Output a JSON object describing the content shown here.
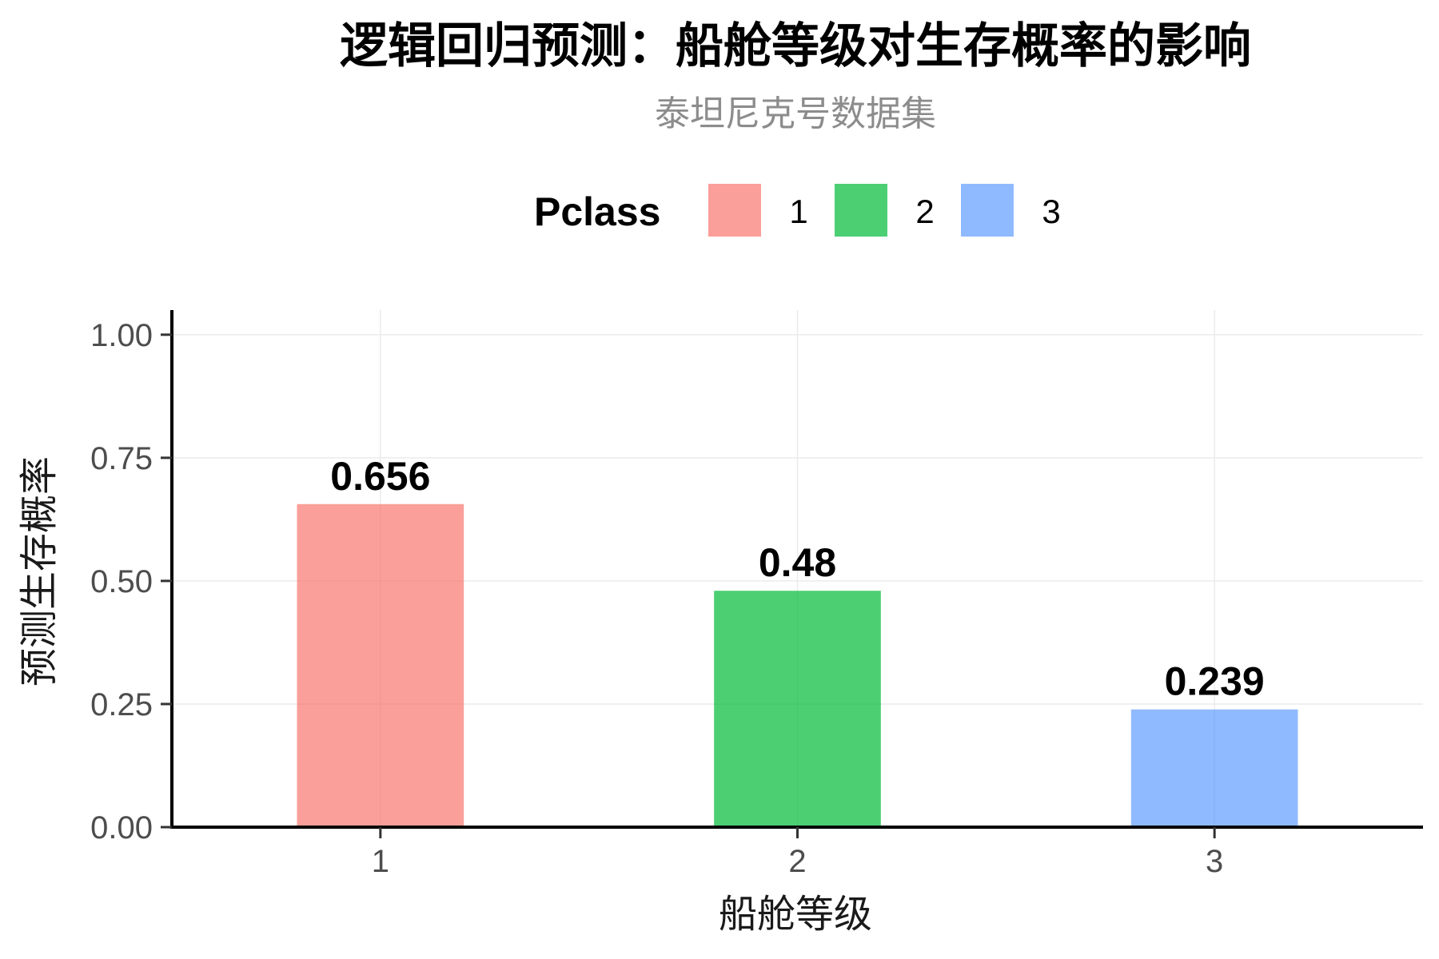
{
  "chart_data": {
    "type": "bar",
    "title": "逻辑回归预测：船舱等级对生存概率的影响",
    "subtitle": "泰坦尼克号数据集",
    "xlabel": "船舱等级",
    "ylabel": "预测生存概率",
    "categories": [
      "1",
      "2",
      "3"
    ],
    "values": [
      0.656,
      0.48,
      0.239
    ],
    "data_labels": [
      "0.656",
      "0.48",
      "0.239"
    ],
    "ylim": [
      0,
      1
    ],
    "y_ticks": [
      0,
      0.25,
      0.5,
      0.75,
      1
    ],
    "y_tick_labels": [
      "0.00",
      "0.25",
      "0.50",
      "0.75",
      "1.00"
    ],
    "grid": true,
    "legend": {
      "title": "Pclass",
      "position": "top",
      "entries": [
        {
          "label": "1",
          "color": "#F8766D"
        },
        {
          "label": "2",
          "color": "#00BA38"
        },
        {
          "label": "3",
          "color": "#619CFF"
        }
      ]
    },
    "bar_opacity": 0.7
  }
}
